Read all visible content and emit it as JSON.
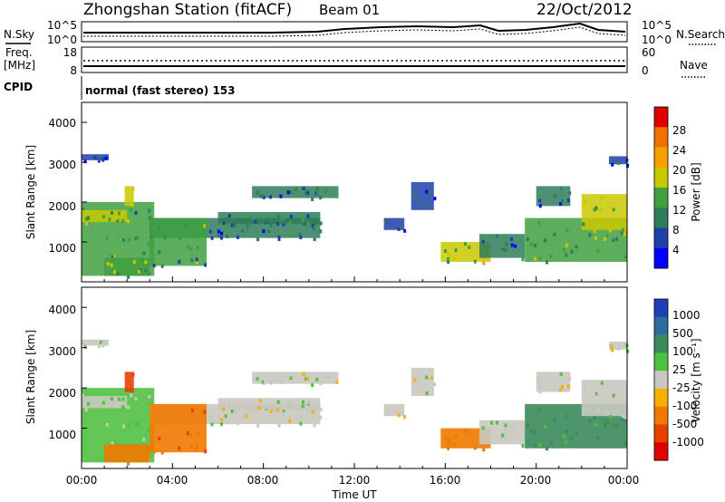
{
  "header": {
    "title": "Zhongshan Station (fitACF)",
    "beam": "Beam 01",
    "date": "22/Oct/2012"
  },
  "top_panels": {
    "nsky_label": "N.Sky",
    "nsearch_label": "N.Search",
    "noise_ticks_left": [
      "10^5",
      "10^0"
    ],
    "noise_ticks_right": [
      "10^5",
      "10^0"
    ],
    "freq_label_1": "Freq.",
    "freq_label_2": "[MHz]",
    "freq_ticks": [
      "18",
      "8"
    ],
    "nave_label": "Nave",
    "nave_ticks": [
      "60",
      "0"
    ],
    "cpid_label": "CPID",
    "cpid_text": "normal (fast stereo) 153"
  },
  "power_panel": {
    "ylabel": "Slant Range [km]",
    "yticks": [
      "4000",
      "3000",
      "2000",
      "1000"
    ],
    "colorbar_label": "Power [dB]",
    "colorbar_ticks": [
      "28",
      "24",
      "20",
      "16",
      "12",
      "8",
      "4"
    ],
    "colors": [
      "#0000ff",
      "#1f3fa8",
      "#2e7d5b",
      "#40a040",
      "#c8c800",
      "#f5a000",
      "#f07000",
      "#e00000"
    ]
  },
  "velocity_panel": {
    "ylabel": "Slant Range [km]",
    "yticks": [
      "4000",
      "3000",
      "2000",
      "1000"
    ],
    "colorbar_label": "Velocity [m s⁻¹]",
    "colorbar_ticks": [
      "1000",
      "500",
      "100",
      "25",
      "-25",
      "-100",
      "-500",
      "-1000"
    ],
    "colors": [
      "#1f3fb8",
      "#2e6b9c",
      "#3a8a5a",
      "#50c040",
      "#c8c8c0",
      "#f5b000",
      "#f07a00",
      "#e84000",
      "#e00000"
    ]
  },
  "xaxis": {
    "ticks": [
      "00:00",
      "04:00",
      "08:00",
      "12:00",
      "16:00",
      "20:00",
      "00:00"
    ],
    "label": "Time UT"
  },
  "chart_data": {
    "type": "heatmap",
    "title": "Zhongshan Station (fitACF)",
    "xlabel": "Time UT",
    "ylabel": "Slant Range [km]",
    "x_range_hours": [
      0,
      24
    ],
    "ylim": [
      0,
      4500
    ],
    "grid": false,
    "panels": [
      "Power [dB]",
      "Velocity [m s⁻¹]"
    ],
    "echo_regions": [
      {
        "t0": 0.0,
        "t1": 3.2,
        "r0": 150,
        "r1": 2000,
        "power_db": 14,
        "velocity": 30
      },
      {
        "t0": 0.0,
        "t1": 2.0,
        "r0": 1500,
        "r1": 1800,
        "power_db": 18,
        "velocity": 20
      },
      {
        "t0": 1.0,
        "t1": 3.0,
        "r0": 150,
        "r1": 600,
        "power_db": 16,
        "velocity": -150
      },
      {
        "t0": 1.9,
        "t1": 2.3,
        "r0": 1900,
        "r1": 2400,
        "power_db": 20,
        "velocity": -400
      },
      {
        "t0": 3.0,
        "t1": 10.5,
        "r0": 1100,
        "r1": 1600,
        "power_db": 10,
        "velocity": 0
      },
      {
        "t0": 3.0,
        "t1": 5.5,
        "r0": 400,
        "r1": 1600,
        "power_db": 14,
        "velocity": -300
      },
      {
        "t0": 6.0,
        "t1": 10.5,
        "r0": 1450,
        "r1": 1750,
        "power_db": 12,
        "velocity": 0
      },
      {
        "t0": 7.5,
        "t1": 11.3,
        "r0": 2100,
        "r1": 2400,
        "power_db": 10,
        "velocity": 10
      },
      {
        "t0": 13.3,
        "t1": 14.2,
        "r0": 1300,
        "r1": 1600,
        "power_db": 9,
        "velocity": 0
      },
      {
        "t0": 14.5,
        "t1": 15.5,
        "r0": 1800,
        "r1": 2500,
        "power_db": 8,
        "velocity": 0
      },
      {
        "t0": 15.8,
        "t1": 18.0,
        "r0": 500,
        "r1": 1000,
        "power_db": 18,
        "velocity": -200
      },
      {
        "t0": 17.5,
        "t1": 19.5,
        "r0": 600,
        "r1": 1200,
        "power_db": 10,
        "velocity": 20
      },
      {
        "t0": 19.5,
        "t1": 24.0,
        "r0": 500,
        "r1": 1600,
        "power_db": 16,
        "velocity": 80
      },
      {
        "t0": 20.0,
        "t1": 21.5,
        "r0": 1900,
        "r1": 2400,
        "power_db": 10,
        "velocity": 10
      },
      {
        "t0": 22.0,
        "t1": 24.0,
        "r0": 1300,
        "r1": 2200,
        "power_db": 18,
        "velocity": 20
      },
      {
        "t0": 23.2,
        "t1": 24.0,
        "r0": 2950,
        "r1": 3150,
        "power_db": 8,
        "velocity": 0
      },
      {
        "t0": 0.0,
        "t1": 1.2,
        "r0": 3050,
        "r1": 3200,
        "power_db": 6,
        "velocity": 0
      }
    ]
  }
}
